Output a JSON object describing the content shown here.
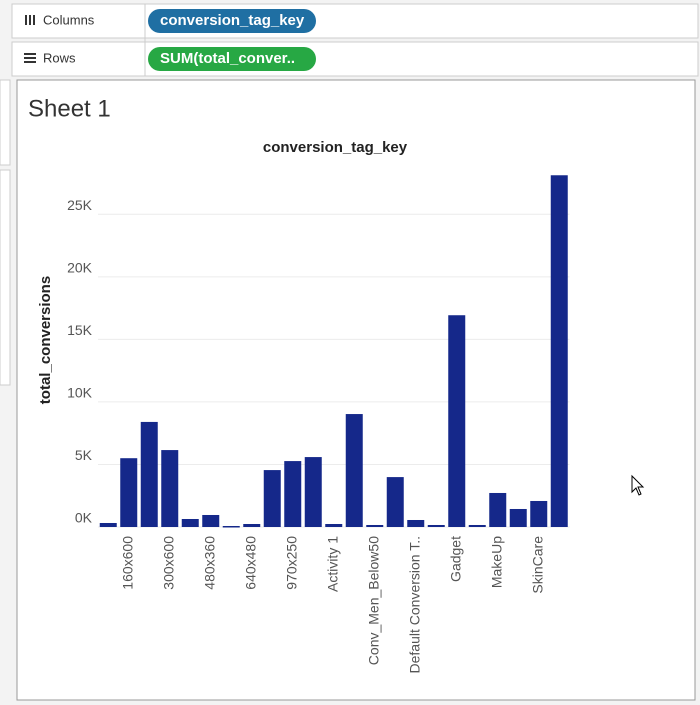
{
  "shelves": {
    "columns": {
      "label": "Columns",
      "pill": "conversion_tag_key"
    },
    "rows": {
      "label": "Rows",
      "pill": "SUM(total_conver.."
    }
  },
  "sheet": {
    "title": "Sheet 1"
  },
  "chart_data": {
    "type": "bar",
    "title": "conversion_tag_key",
    "y_label": "total_conversions",
    "categories": [
      null,
      "160x600",
      null,
      "300x600",
      null,
      "480x360",
      null,
      "640x480",
      null,
      "970x250",
      null,
      "Activity 1",
      null,
      "Conv_Men_Below50",
      null,
      "Default Conversion T..",
      null,
      "Gadget",
      null,
      "MakeUp",
      null,
      "SkinCare",
      null
    ],
    "values": [
      320,
      5500,
      8400,
      6150,
      640,
      960,
      80,
      240,
      4550,
      5270,
      5590,
      240,
      9030,
      160,
      3990,
      560,
      160,
      16930,
      160,
      2720,
      1440,
      2080,
      28120
    ],
    "color": "#15288a",
    "ylim": [
      0,
      29500
    ],
    "yticks": [
      {
        "value": 0,
        "label": "0K"
      },
      {
        "value": 5000,
        "label": "5K"
      },
      {
        "value": 10000,
        "label": "10K"
      },
      {
        "value": 15000,
        "label": "15K"
      },
      {
        "value": 20000,
        "label": "20K"
      },
      {
        "value": 25000,
        "label": "25K"
      }
    ],
    "grid": true
  }
}
